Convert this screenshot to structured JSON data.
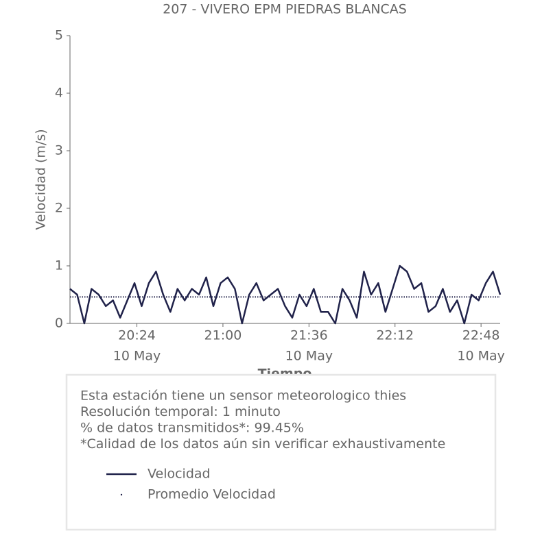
{
  "chart_data": {
    "type": "line",
    "title": "207 - VIVERO EPM PIEDRAS BLANCAS",
    "xlabel": "Tiempo",
    "ylabel": "Velocidad (m/s)",
    "x": [
      "19:56",
      "19:59",
      "20:02",
      "20:05",
      "20:08",
      "20:11",
      "20:14",
      "20:17",
      "20:20",
      "20:23",
      "20:26",
      "20:29",
      "20:32",
      "20:35",
      "20:38",
      "20:41",
      "20:44",
      "20:47",
      "20:50",
      "20:53",
      "20:56",
      "20:59",
      "21:02",
      "21:05",
      "21:08",
      "21:11",
      "21:14",
      "21:17",
      "21:20",
      "21:23",
      "21:26",
      "21:29",
      "21:32",
      "21:35",
      "21:38",
      "21:41",
      "21:44",
      "21:47",
      "21:50",
      "21:53",
      "21:56",
      "21:59",
      "22:02",
      "22:05",
      "22:08",
      "22:11",
      "22:14",
      "22:17",
      "22:20",
      "22:23",
      "22:26",
      "22:29",
      "22:32",
      "22:35",
      "22:38",
      "22:41",
      "22:44",
      "22:47",
      "22:50",
      "22:53",
      "22:56"
    ],
    "series": [
      {
        "name": "Velocidad",
        "color": "#20224a",
        "values": [
          0.6,
          0.5,
          0.0,
          0.6,
          0.5,
          0.3,
          0.4,
          0.1,
          0.4,
          0.7,
          0.3,
          0.7,
          0.9,
          0.5,
          0.2,
          0.6,
          0.4,
          0.6,
          0.5,
          0.8,
          0.3,
          0.7,
          0.8,
          0.6,
          0.0,
          0.5,
          0.7,
          0.4,
          0.5,
          0.6,
          0.3,
          0.1,
          0.5,
          0.3,
          0.6,
          0.2,
          0.2,
          0.0,
          0.6,
          0.4,
          0.1,
          0.9,
          0.5,
          0.7,
          0.2,
          0.6,
          1.0,
          0.9,
          0.6,
          0.7,
          0.2,
          0.3,
          0.6,
          0.2,
          0.4,
          0.0,
          0.5,
          0.4,
          0.7,
          0.9,
          0.5
        ]
      }
    ],
    "mean_line": {
      "name": "Promedio Velocidad",
      "color": "#20224a",
      "value": 0.46
    },
    "xlim": [
      "19:56",
      "22:56"
    ],
    "xticks": [
      "20:24",
      "21:00",
      "21:36",
      "22:12",
      "22:48"
    ],
    "xtick_dates": [
      "10 May",
      null,
      "10 May",
      null,
      "10 May"
    ],
    "ylim": [
      0,
      5
    ],
    "yticks": [
      0,
      1,
      2,
      3,
      4,
      5
    ],
    "grid": false
  },
  "info": {
    "lines": [
      "Esta estación tiene un sensor meteorologico thies",
      "Resolución temporal: 1 minuto",
      "% de datos transmitidos*: 99.45%",
      "*Calidad de los datos aún sin verificar exhaustivamente"
    ]
  }
}
